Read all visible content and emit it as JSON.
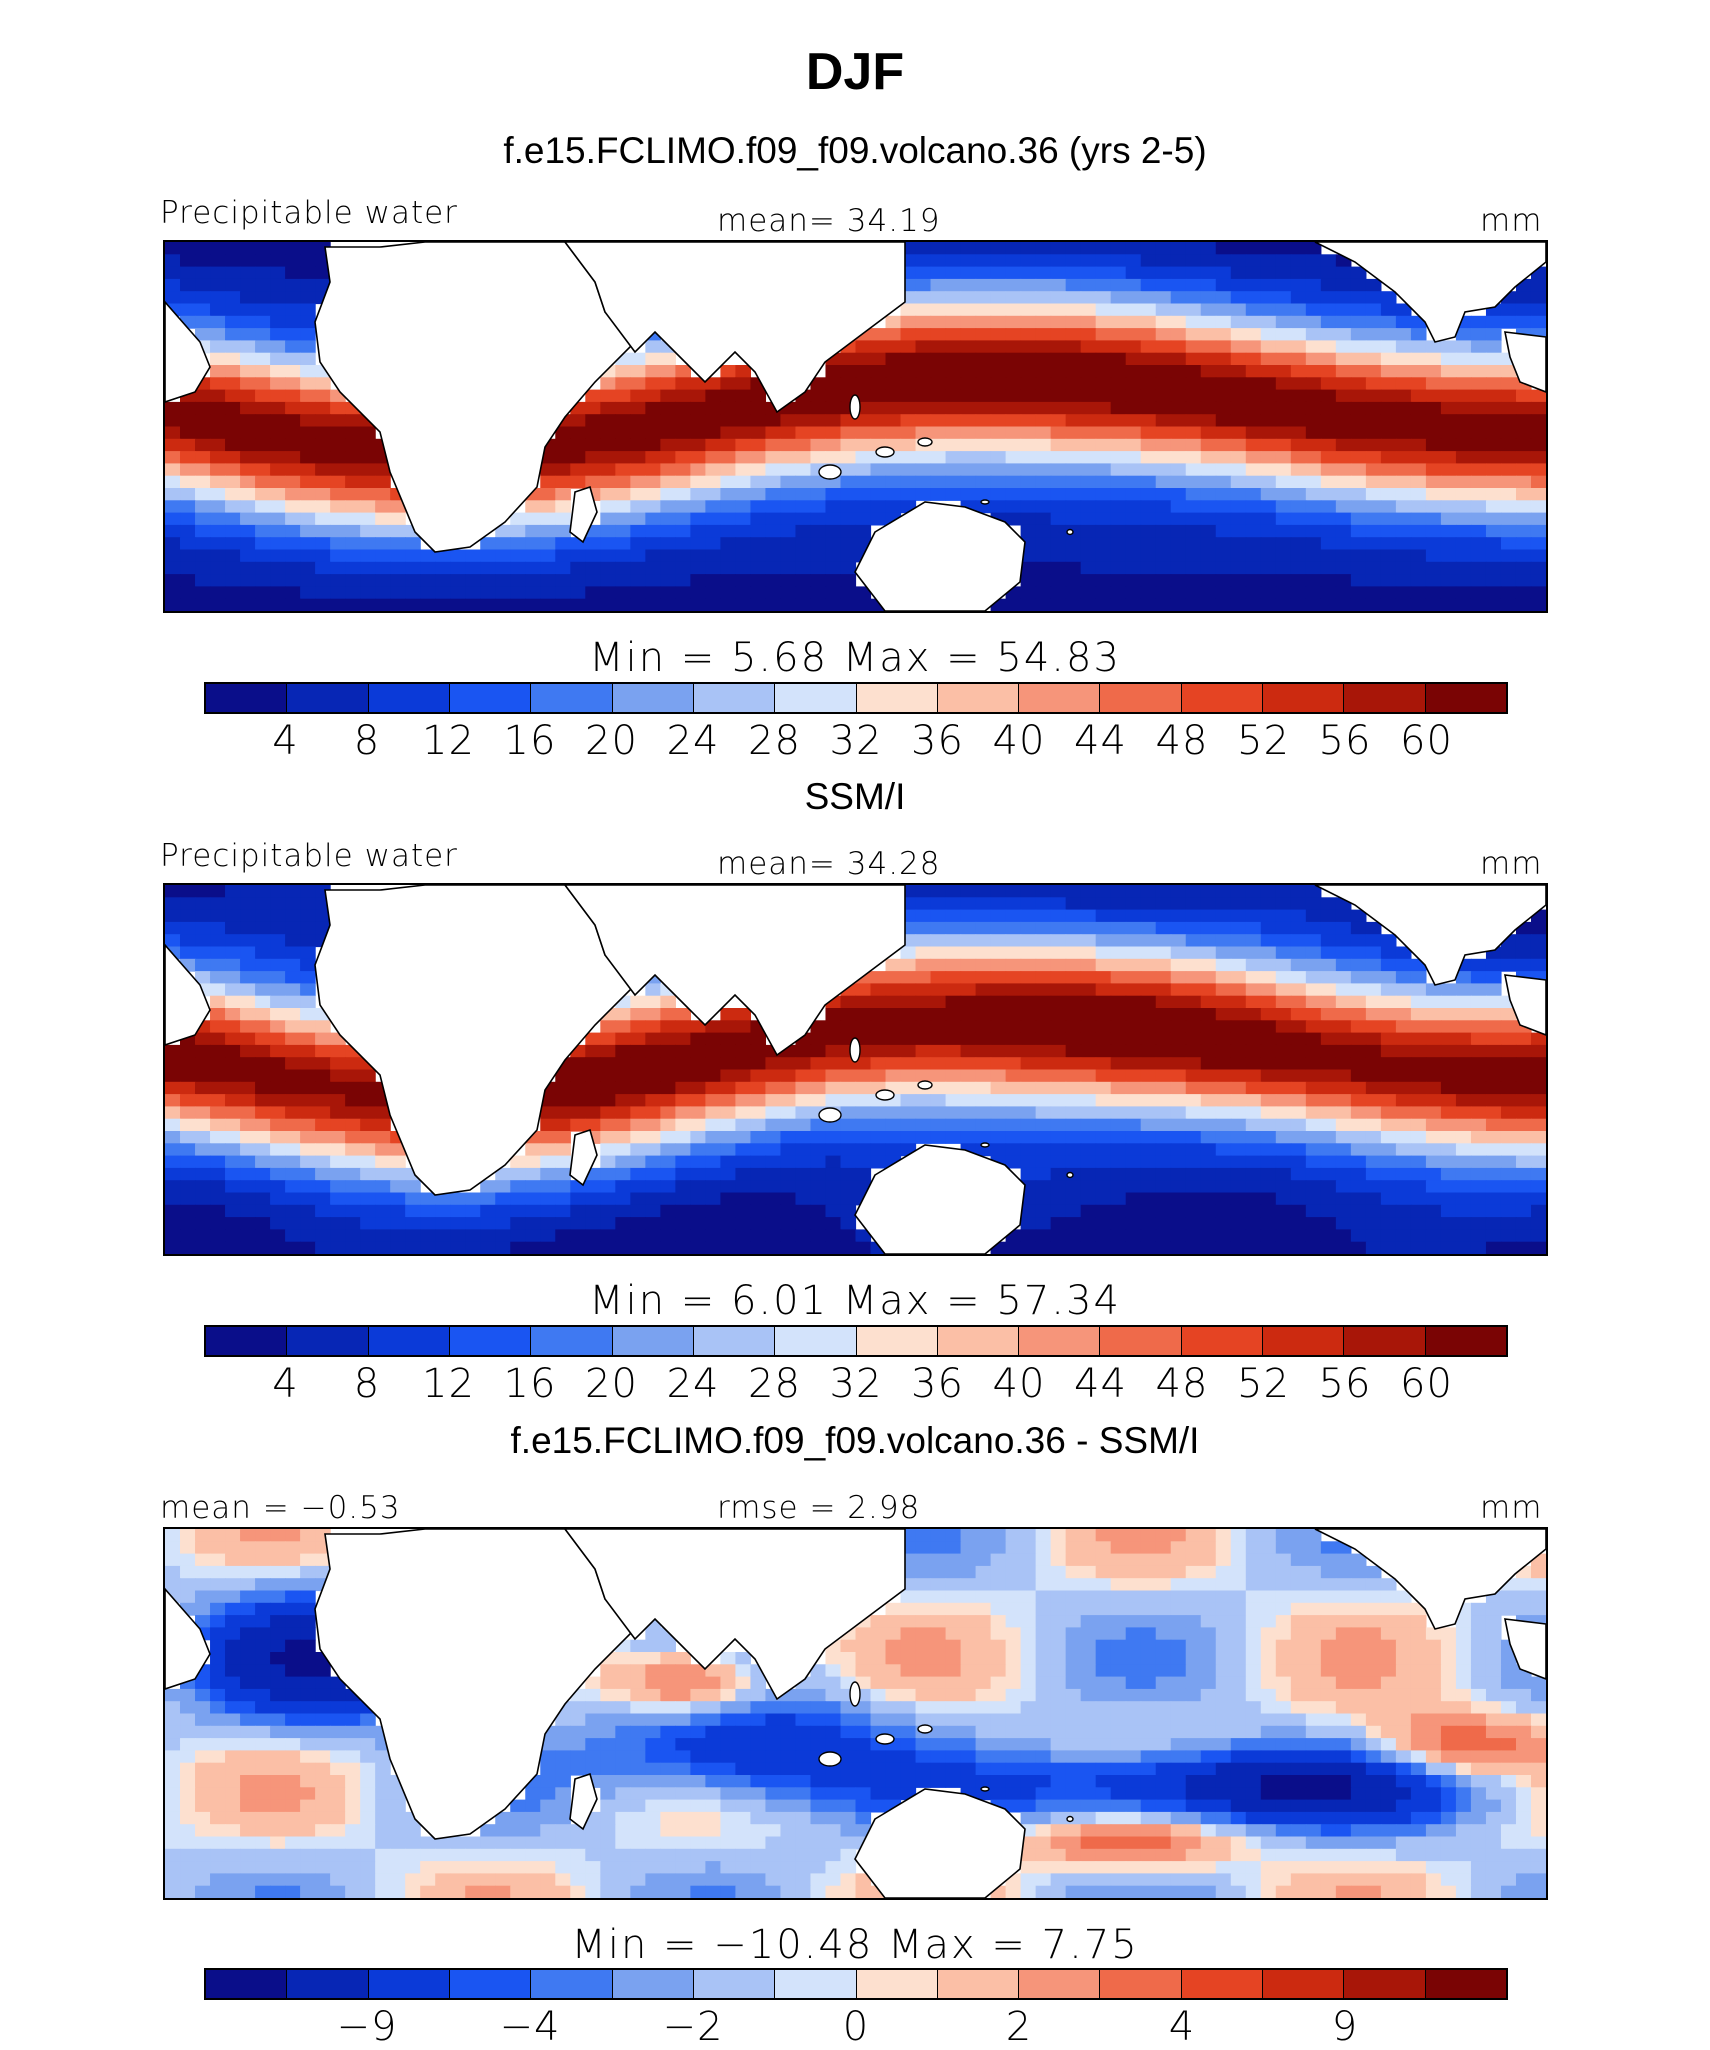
{
  "title": "DJF",
  "panels": [
    {
      "id": "model",
      "title": "f.e15.FCLIMO.f09_f09.volcano.36 (yrs 2-5)",
      "left_label": "Precipitable water",
      "center_label": "mean=  34.19",
      "right_label": "mm",
      "minmax": "Min =    5.68  Max =   54.83",
      "colorbar": {
        "ticks": [
          "4",
          "8",
          "12",
          "16",
          "20",
          "24",
          "28",
          "32",
          "36",
          "40",
          "44",
          "48",
          "52",
          "56",
          "60"
        ],
        "colors": [
          "#0a0e8a",
          "#0726b5",
          "#0b3ad8",
          "#1a55f2",
          "#3f79f2",
          "#7aa2f0",
          "#a9c3f6",
          "#d3e3fb",
          "#fde0cf",
          "#fbbfa6",
          "#f6957a",
          "#ef6a4a",
          "#e54423",
          "#cc2a10",
          "#a81608",
          "#7a0404"
        ]
      },
      "field_type": "pw"
    },
    {
      "id": "obs",
      "title": "SSM/I",
      "left_label": "Precipitable water",
      "center_label": "mean=  34.28",
      "right_label": "mm",
      "minmax": "Min =    6.01  Max =   57.34",
      "colorbar": {
        "ticks": [
          "4",
          "8",
          "12",
          "16",
          "20",
          "24",
          "28",
          "32",
          "36",
          "40",
          "44",
          "48",
          "52",
          "56",
          "60"
        ],
        "colors": [
          "#0a0e8a",
          "#0726b5",
          "#0b3ad8",
          "#1a55f2",
          "#3f79f2",
          "#7aa2f0",
          "#a9c3f6",
          "#d3e3fb",
          "#fde0cf",
          "#fbbfa6",
          "#f6957a",
          "#ef6a4a",
          "#e54423",
          "#cc2a10",
          "#a81608",
          "#7a0404"
        ]
      },
      "field_type": "pw"
    },
    {
      "id": "diff",
      "title": "f.e15.FCLIMO.f09_f09.volcano.36 - SSM/I",
      "left_label": "mean =  −0.53",
      "center_label": "rmse =    2.98",
      "right_label": "mm",
      "minmax": "Min = −10.48  Max =     7.75",
      "colorbar": {
        "ticks": [
          "−9",
          "−4",
          "−2",
          "0",
          "2",
          "4",
          "9"
        ],
        "colors": [
          "#0a0e8a",
          "#0726b5",
          "#0b3ad8",
          "#1a55f2",
          "#3f79f2",
          "#7aa2f0",
          "#a9c3f6",
          "#d3e3fb",
          "#fde0cf",
          "#fbbfa6",
          "#f6957a",
          "#ef6a4a",
          "#e54423",
          "#cc2a10",
          "#a81608",
          "#7a0404"
        ]
      },
      "field_type": "diff"
    }
  ]
}
